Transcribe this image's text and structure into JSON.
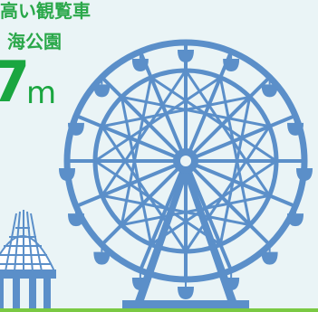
{
  "headline": {
    "line1": "高い観覧車",
    "line2": "海公園"
  },
  "height": {
    "number": "7",
    "unit": "m"
  },
  "colors": {
    "accent_text": "#2aa84a",
    "wheel": "#5b8fc9",
    "ground": "#7ac943",
    "background": "#eaf4f6"
  },
  "icons": {
    "wheel": "ferris-wheel-icon",
    "dome": "dome-building-icon"
  }
}
